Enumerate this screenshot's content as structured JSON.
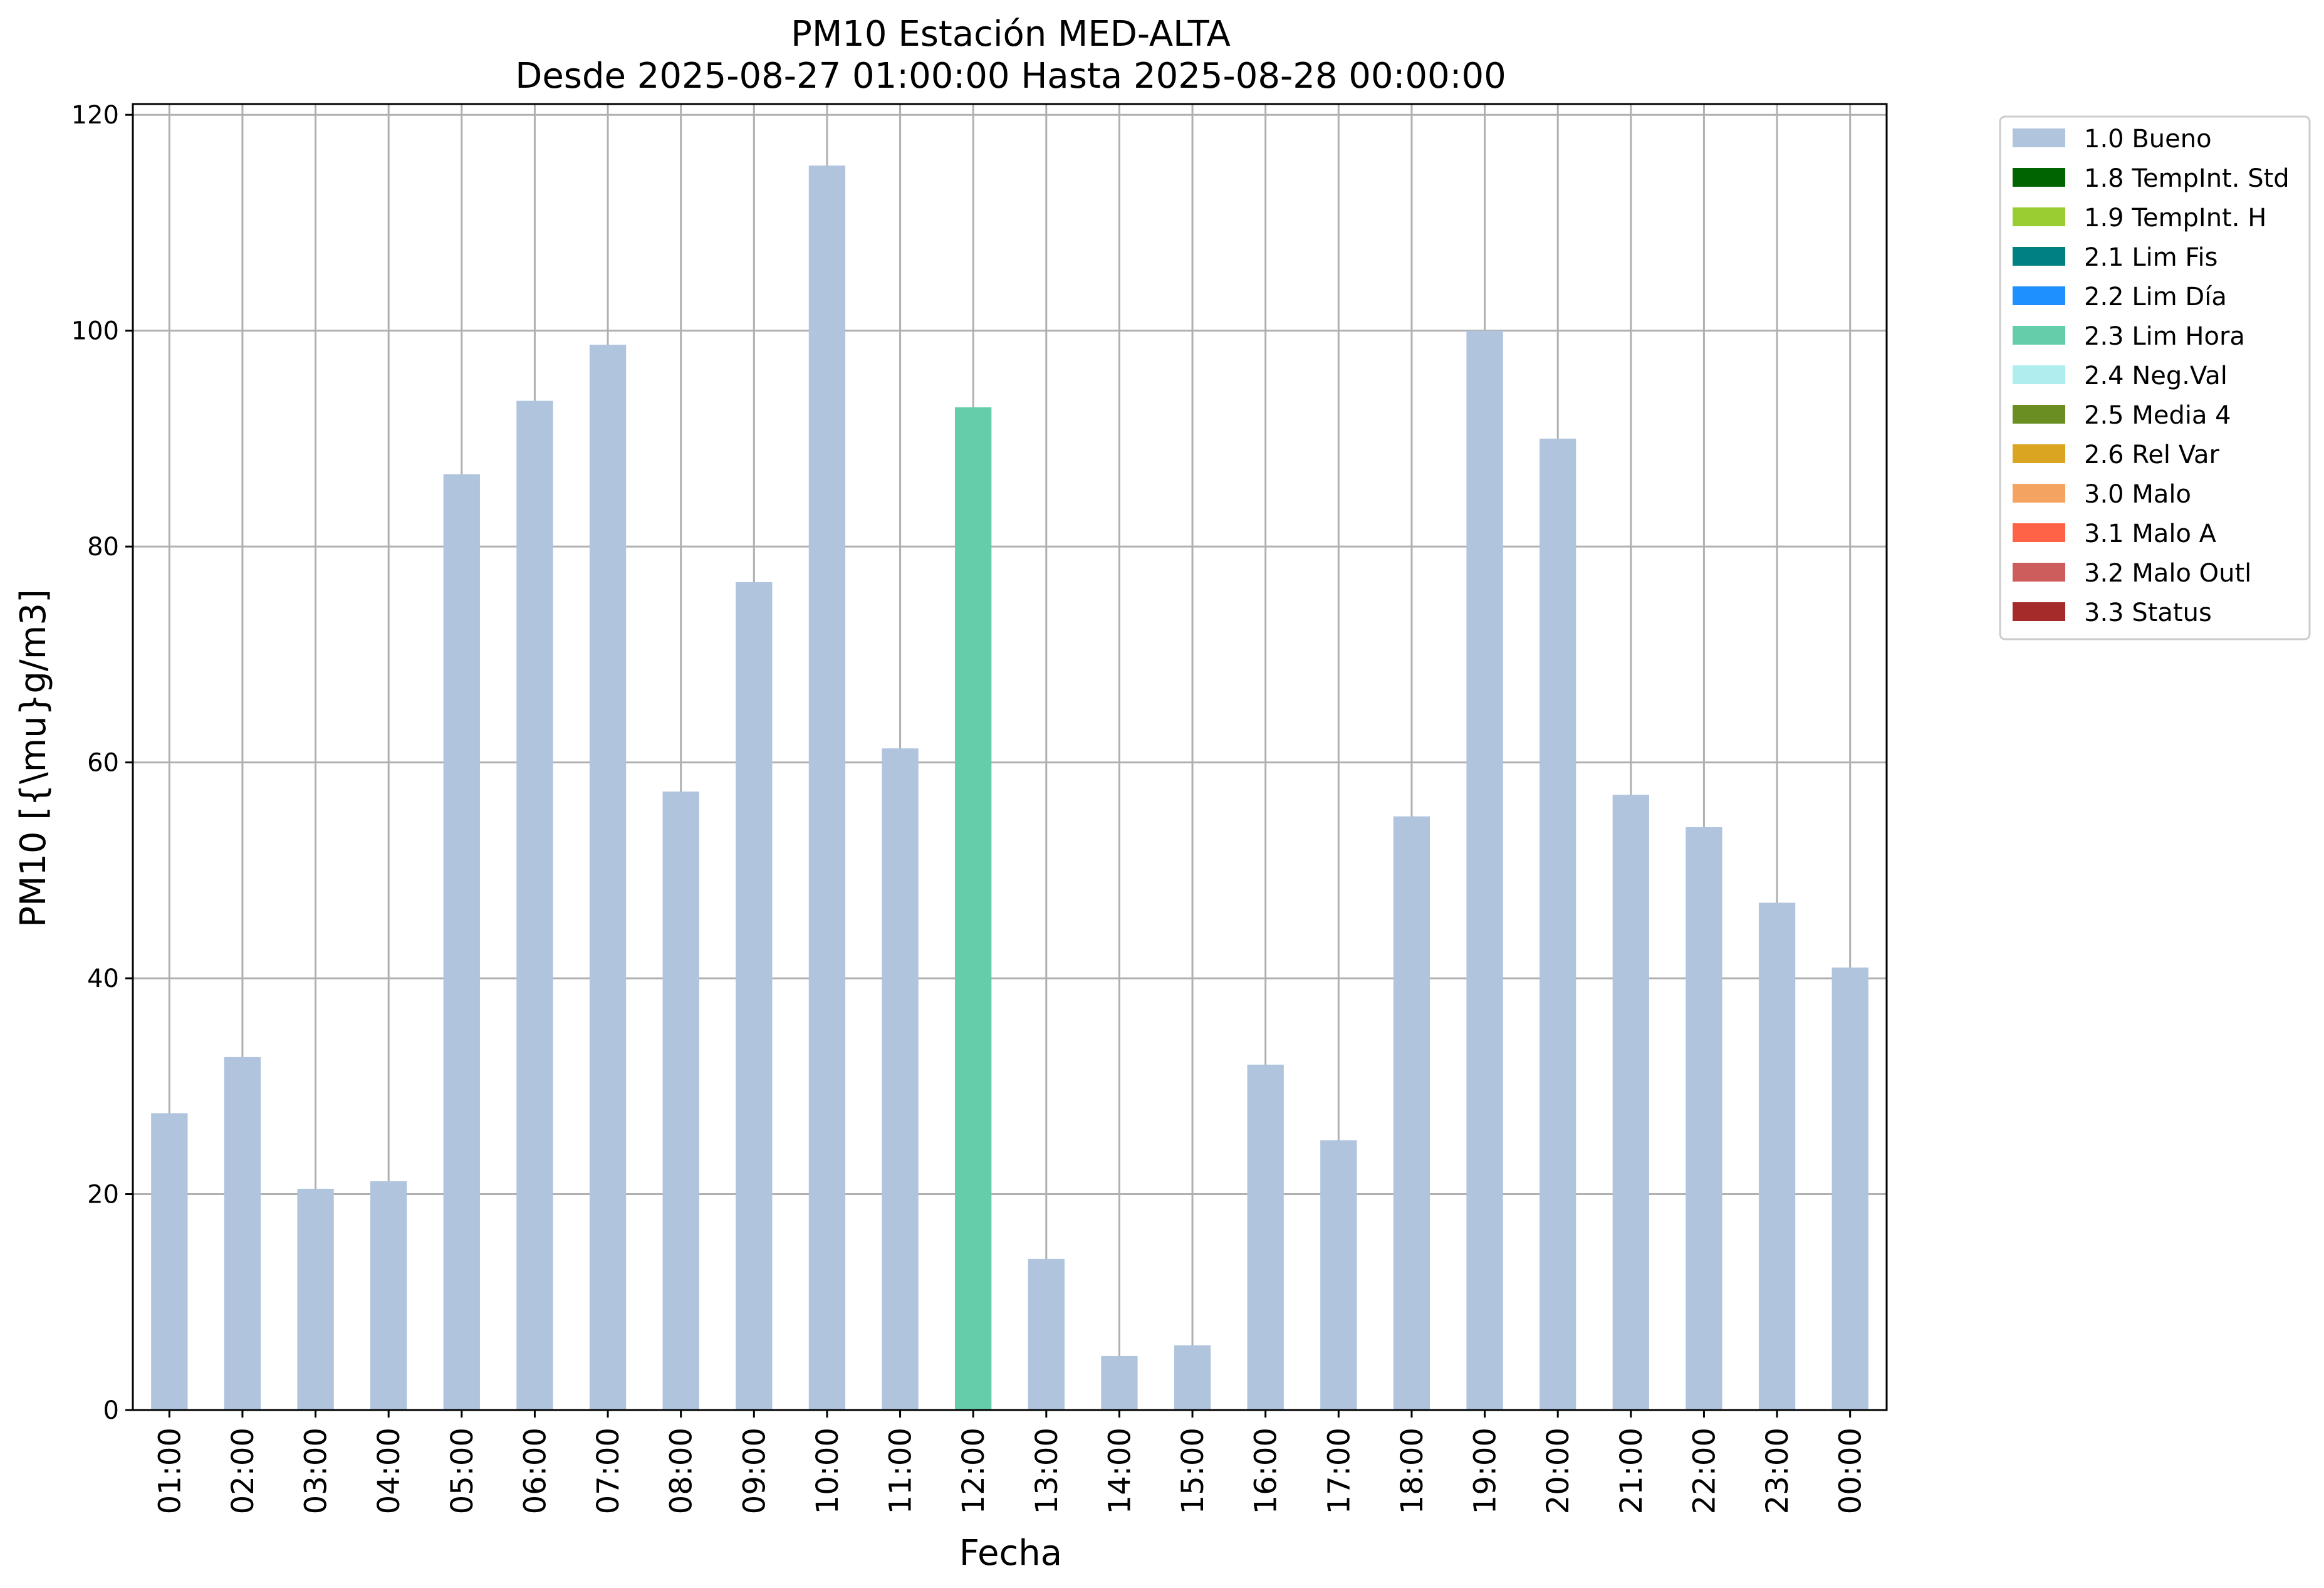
{
  "chart_data": {
    "type": "bar",
    "title": "PM10 Estación MED-ALTA",
    "subtitle": "Desde 2025-08-27 01:00:00 Hasta 2025-08-28 00:00:00",
    "xlabel": "Fecha",
    "ylabel": "PM10 [{\\mu}g/m3]",
    "ylim": [
      0,
      121
    ],
    "yticks": [
      0,
      20,
      40,
      60,
      80,
      100,
      120
    ],
    "grid": true,
    "legend_position": "outside-top-right",
    "categories": [
      "01:00",
      "02:00",
      "03:00",
      "04:00",
      "05:00",
      "06:00",
      "07:00",
      "08:00",
      "09:00",
      "10:00",
      "11:00",
      "12:00",
      "13:00",
      "14:00",
      "15:00",
      "16:00",
      "17:00",
      "18:00",
      "19:00",
      "20:00",
      "21:00",
      "22:00",
      "23:00",
      "00:00"
    ],
    "values": [
      27.5,
      32.7,
      20.5,
      21.2,
      86.7,
      93.5,
      98.7,
      57.3,
      76.7,
      115.3,
      61.3,
      92.9,
      14.0,
      5.0,
      6.0,
      32.0,
      25.0,
      55.0,
      100.0,
      90.0,
      57.0,
      54.0,
      47.0,
      41.0
    ],
    "flags": [
      "1.0 Bueno",
      "1.0 Bueno",
      "1.0 Bueno",
      "1.0 Bueno",
      "1.0 Bueno",
      "1.0 Bueno",
      "1.0 Bueno",
      "1.0 Bueno",
      "1.0 Bueno",
      "1.0 Bueno",
      "1.0 Bueno",
      "2.3 Lim Hora",
      "1.0 Bueno",
      "1.0 Bueno",
      "1.0 Bueno",
      "1.0 Bueno",
      "1.0 Bueno",
      "1.0 Bueno",
      "1.0 Bueno",
      "1.0 Bueno",
      "1.0 Bueno",
      "1.0 Bueno",
      "1.0 Bueno",
      "1.0 Bueno"
    ],
    "legend": [
      {
        "label": "1.0 Bueno",
        "color": "#b0c4de"
      },
      {
        "label": "1.8 TempInt. Std",
        "color": "#006400"
      },
      {
        "label": "1.9 TempInt. H",
        "color": "#9acd32"
      },
      {
        "label": "2.1 Lim Fis",
        "color": "#008080"
      },
      {
        "label": "2.2 Lim Día",
        "color": "#1e90ff"
      },
      {
        "label": "2.3 Lim Hora",
        "color": "#66cdaa"
      },
      {
        "label": "2.4 Neg.Val",
        "color": "#afeeee"
      },
      {
        "label": "2.5 Media 4",
        "color": "#6b8e23"
      },
      {
        "label": "2.6 Rel Var",
        "color": "#daa520"
      },
      {
        "label": "3.0 Malo",
        "color": "#f4a460"
      },
      {
        "label": "3.1 Malo A",
        "color": "#ff6347"
      },
      {
        "label": "3.2 Malo Outl",
        "color": "#cd5c5c"
      },
      {
        "label": "3.3 Status",
        "color": "#a52a2a"
      }
    ]
  }
}
